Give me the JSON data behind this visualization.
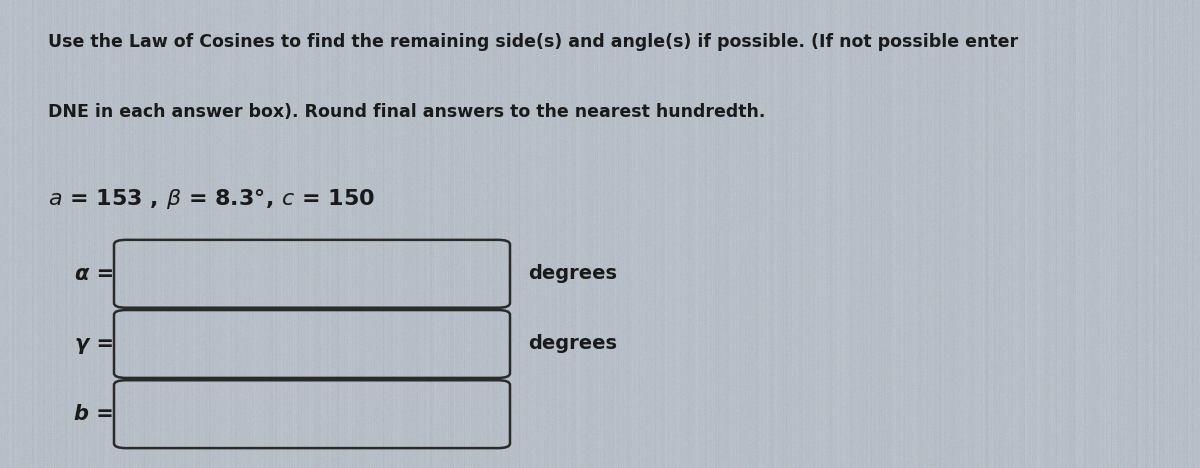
{
  "background_color": "#b8bfc8",
  "title_line1": "Use the Law of Cosines to find the remaining side(s) and angle(s) if possible. (If not possible enter",
  "title_line2": "DNE in each answer box). Round final answers to the nearest hundredth.",
  "given_text_parts": [
    {
      "text": "a",
      "style": "italic",
      "weight": "bold"
    },
    {
      "text": " = 153 , ",
      "style": "normal",
      "weight": "bold"
    },
    {
      "text": "β",
      "style": "italic",
      "weight": "bold"
    },
    {
      "text": " = 8.3°, ",
      "style": "normal",
      "weight": "bold"
    },
    {
      "text": "c",
      "style": "italic",
      "weight": "bold"
    },
    {
      "text": " = 150",
      "style": "normal",
      "weight": "bold"
    }
  ],
  "rows": [
    {
      "label": "α =",
      "suffix": "degrees",
      "label_style": "italic"
    },
    {
      "label": "γ =",
      "suffix": "degrees",
      "label_style": "italic"
    },
    {
      "label": "b =",
      "suffix": "",
      "label_style": "italic"
    }
  ],
  "box_facecolor": "none",
  "box_edgecolor": "#2a2a2a",
  "text_color": "#1a1a1a",
  "title_fontsize": 12.5,
  "label_fontsize": 15,
  "given_fontsize": 16,
  "suffix_fontsize": 14
}
